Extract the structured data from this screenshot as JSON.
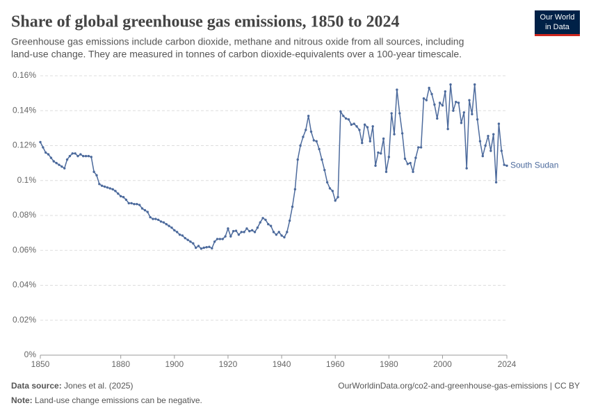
{
  "chart_data": {
    "type": "line",
    "title": "Share of global greenhouse gas emissions, 1850 to 2024",
    "subtitle": [
      "Greenhouse gas emissions include carbon dioxide, methane and nitrous oxide from all sources, including",
      "land-use change. They are measured in tonnes of carbon dioxide-equivalents over a 100-year timescale."
    ],
    "x": [
      1850,
      1851,
      1852,
      1853,
      1854,
      1855,
      1856,
      1857,
      1858,
      1859,
      1860,
      1861,
      1862,
      1863,
      1864,
      1865,
      1866,
      1867,
      1868,
      1869,
      1870,
      1871,
      1872,
      1873,
      1874,
      1875,
      1876,
      1877,
      1878,
      1879,
      1880,
      1881,
      1882,
      1883,
      1884,
      1885,
      1886,
      1887,
      1888,
      1889,
      1890,
      1891,
      1892,
      1893,
      1894,
      1895,
      1896,
      1897,
      1898,
      1899,
      1900,
      1901,
      1902,
      1903,
      1904,
      1905,
      1906,
      1907,
      1908,
      1909,
      1910,
      1911,
      1912,
      1913,
      1914,
      1915,
      1916,
      1917,
      1918,
      1919,
      1920,
      1921,
      1922,
      1923,
      1924,
      1925,
      1926,
      1927,
      1928,
      1929,
      1930,
      1931,
      1932,
      1933,
      1934,
      1935,
      1936,
      1937,
      1938,
      1939,
      1940,
      1941,
      1942,
      1943,
      1944,
      1945,
      1946,
      1947,
      1948,
      1949,
      1950,
      1951,
      1952,
      1953,
      1954,
      1955,
      1956,
      1957,
      1958,
      1959,
      1960,
      1961,
      1962,
      1963,
      1964,
      1965,
      1966,
      1967,
      1968,
      1969,
      1970,
      1971,
      1972,
      1973,
      1974,
      1975,
      1976,
      1977,
      1978,
      1979,
      1980,
      1981,
      1982,
      1983,
      1984,
      1985,
      1986,
      1987,
      1988,
      1989,
      1990,
      1991,
      1992,
      1993,
      1994,
      1995,
      1996,
      1997,
      1998,
      1999,
      2000,
      2001,
      2002,
      2003,
      2004,
      2005,
      2006,
      2007,
      2008,
      2009,
      2010,
      2011,
      2012,
      2013,
      2014,
      2015,
      2016,
      2017,
      2018,
      2019,
      2020,
      2021,
      2022,
      2023,
      2024
    ],
    "series": [
      {
        "name": "South Sudan",
        "color": "#4c6a9c",
        "values": [
          0.122,
          0.119,
          0.116,
          0.115,
          0.113,
          0.111,
          0.11,
          0.109,
          0.108,
          0.107,
          0.112,
          0.114,
          0.1155,
          0.1155,
          0.114,
          0.115,
          0.114,
          0.114,
          0.114,
          0.1135,
          0.105,
          0.103,
          0.098,
          0.097,
          0.0965,
          0.096,
          0.0955,
          0.095,
          0.094,
          0.0925,
          0.091,
          0.0905,
          0.089,
          0.087,
          0.087,
          0.0865,
          0.0865,
          0.086,
          0.084,
          0.083,
          0.082,
          0.079,
          0.078,
          0.078,
          0.0775,
          0.0765,
          0.076,
          0.075,
          0.074,
          0.073,
          0.0715,
          0.0705,
          0.069,
          0.0685,
          0.067,
          0.066,
          0.065,
          0.064,
          0.0615,
          0.0625,
          0.061,
          0.0615,
          0.0618,
          0.062,
          0.0612,
          0.065,
          0.0665,
          0.0665,
          0.0665,
          0.068,
          0.0725,
          0.068,
          0.071,
          0.0712,
          0.069,
          0.0705,
          0.0705,
          0.0725,
          0.071,
          0.0715,
          0.0705,
          0.073,
          0.076,
          0.0785,
          0.0775,
          0.075,
          0.074,
          0.0705,
          0.069,
          0.0705,
          0.0685,
          0.0675,
          0.0705,
          0.077,
          0.085,
          0.095,
          0.112,
          0.12,
          0.125,
          0.129,
          0.137,
          0.128,
          0.123,
          0.1225,
          0.118,
          0.112,
          0.106,
          0.099,
          0.0955,
          0.094,
          0.0885,
          0.0905,
          0.1395,
          0.137,
          0.1355,
          0.135,
          0.132,
          0.1325,
          0.131,
          0.129,
          0.1215,
          0.132,
          0.1305,
          0.1225,
          0.131,
          0.1085,
          0.116,
          0.1155,
          0.124,
          0.105,
          0.1135,
          0.1385,
          0.1265,
          0.152,
          0.1385,
          0.127,
          0.1125,
          0.1095,
          0.11,
          0.105,
          0.113,
          0.119,
          0.119,
          0.147,
          0.146,
          0.153,
          0.1495,
          0.1435,
          0.1355,
          0.1445,
          0.143,
          0.151,
          0.1295,
          0.155,
          0.14,
          0.145,
          0.1445,
          0.133,
          0.139,
          0.107,
          0.146,
          0.138,
          0.155,
          0.135,
          0.1225,
          0.114,
          0.12,
          0.1255,
          0.117,
          0.1265,
          0.099,
          0.1325,
          0.117,
          0.109,
          0.1085
        ]
      }
    ],
    "xlim": [
      1850,
      2024
    ],
    "xticks": [
      1850,
      1880,
      1900,
      1920,
      1940,
      1960,
      1980,
      2000,
      2024
    ],
    "ylim": [
      0,
      0.16
    ],
    "yticks": [
      {
        "value": 0,
        "label": "0%"
      },
      {
        "value": 0.02,
        "label": "0.02%"
      },
      {
        "value": 0.04,
        "label": "0.04%"
      },
      {
        "value": 0.06,
        "label": "0.06%"
      },
      {
        "value": 0.08,
        "label": "0.08%"
      },
      {
        "value": 0.1,
        "label": "0.1%"
      },
      {
        "value": 0.12,
        "label": "0.12%"
      },
      {
        "value": 0.14,
        "label": "0.14%"
      },
      {
        "value": 0.16,
        "label": "0.16%"
      }
    ],
    "grid": true,
    "source_label": "Data source:",
    "source": "Jones et al. (2025)",
    "url": "OurWorldinData.org/co2-and-greenhouse-gas-emissions | CC BY",
    "note_label": "Note:",
    "note": "Land-use change emissions can be negative."
  },
  "logo": [
    "Our World",
    "in Data"
  ]
}
